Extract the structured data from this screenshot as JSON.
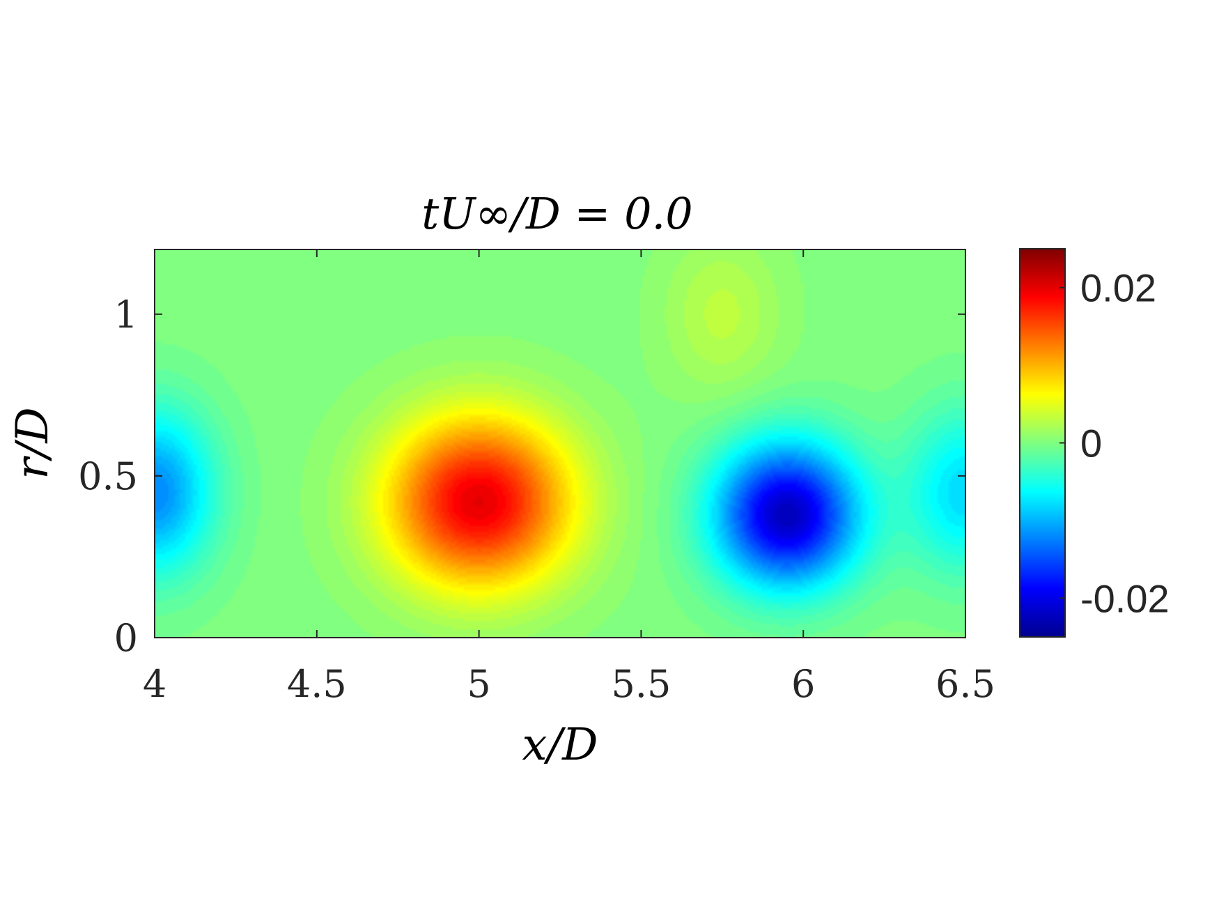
{
  "chart_data": {
    "type": "heatmap",
    "title": "tU∞/D = 0.0",
    "xlabel": "x/D",
    "ylabel": "r/D",
    "xlim": [
      4,
      6.5
    ],
    "ylim": [
      0,
      1.2
    ],
    "xticks": [
      4,
      4.5,
      5,
      5.5,
      6,
      6.5
    ],
    "xtick_labels": [
      "4",
      "4.5",
      "5",
      "5.5",
      "6",
      "6.5"
    ],
    "yticks": [
      0,
      0.5,
      1
    ],
    "ytick_labels": [
      "0",
      "0.5",
      "1"
    ],
    "colorbar": {
      "clim": [
        -0.025,
        0.025
      ],
      "ticks": [
        -0.02,
        0,
        0.02
      ],
      "tick_labels": [
        "-0.02",
        "0",
        "0.02"
      ],
      "colormap": "jet"
    },
    "field_features": [
      {
        "kind": "maximum",
        "x": 5.0,
        "y": 0.42,
        "value": 0.02
      },
      {
        "kind": "minimum",
        "x": 5.95,
        "y": 0.38,
        "value": -0.022
      },
      {
        "kind": "minimum",
        "x": 4.0,
        "y": 0.45,
        "value": -0.012
      },
      {
        "kind": "minimum",
        "x": 6.5,
        "y": 0.45,
        "value": -0.008
      },
      {
        "kind": "maximum",
        "x": 5.75,
        "y": 1.0,
        "value": 0.003
      }
    ],
    "grid": false
  }
}
